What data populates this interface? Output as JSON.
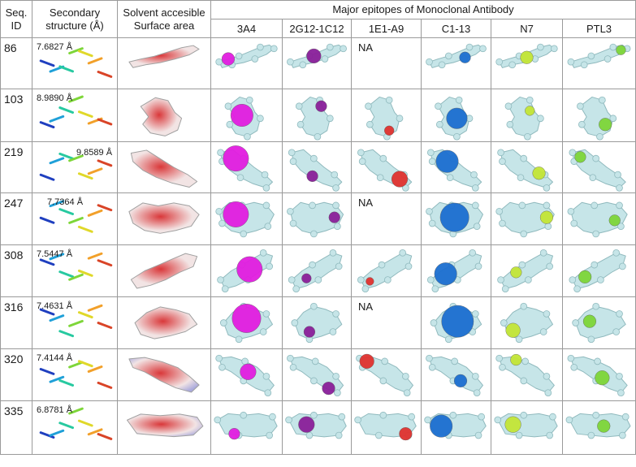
{
  "headers": {
    "seq_id": [
      "Seq.",
      "ID"
    ],
    "secondary": [
      "Secondary",
      "structure (Å)"
    ],
    "sasa": [
      "Solvent accesible",
      "Surface area"
    ],
    "epitopes_title": "Major epitopes of Monoclonal Antibody",
    "antibodies": [
      "3A4",
      "2G12-1C12",
      "1E1-A9",
      "C1-13",
      "N7",
      "PTL3"
    ]
  },
  "na_label": "NA",
  "colors": {
    "surface": "#c6e5e8",
    "surface_edge": "#8fb9bd",
    "epitopes": [
      "#e21de0",
      "#8a1f9a",
      "#e0322f",
      "#1c6fd0",
      "#c3e636",
      "#7ed639"
    ],
    "sasa_red": "#d9383a",
    "sasa_white": "#f2e4e4",
    "sasa_blue": "#a9a9dc"
  },
  "rows": [
    {
      "id": "86",
      "resolution": "7.6827 Å",
      "na": [
        false,
        false,
        true,
        false,
        false,
        false
      ]
    },
    {
      "id": "103",
      "resolution": "8.9890 Å",
      "na": [
        false,
        false,
        false,
        false,
        false,
        false
      ]
    },
    {
      "id": "219",
      "resolution": "9.8589 Å",
      "na": [
        false,
        false,
        false,
        false,
        false,
        false
      ]
    },
    {
      "id": "247",
      "resolution": "7.7364 Å",
      "na": [
        false,
        false,
        true,
        false,
        false,
        false
      ]
    },
    {
      "id": "308",
      "resolution": "7.5447 Å",
      "na": [
        false,
        false,
        false,
        false,
        false,
        false
      ]
    },
    {
      "id": "316",
      "resolution": "7.4631 Å",
      "na": [
        false,
        false,
        true,
        false,
        false,
        false
      ]
    },
    {
      "id": "320",
      "resolution": "7.4144 Å",
      "na": [
        false,
        false,
        false,
        false,
        false,
        false
      ]
    },
    {
      "id": "335",
      "resolution": "6.8781 Å",
      "na": [
        false,
        false,
        false,
        false,
        false,
        false
      ]
    }
  ]
}
